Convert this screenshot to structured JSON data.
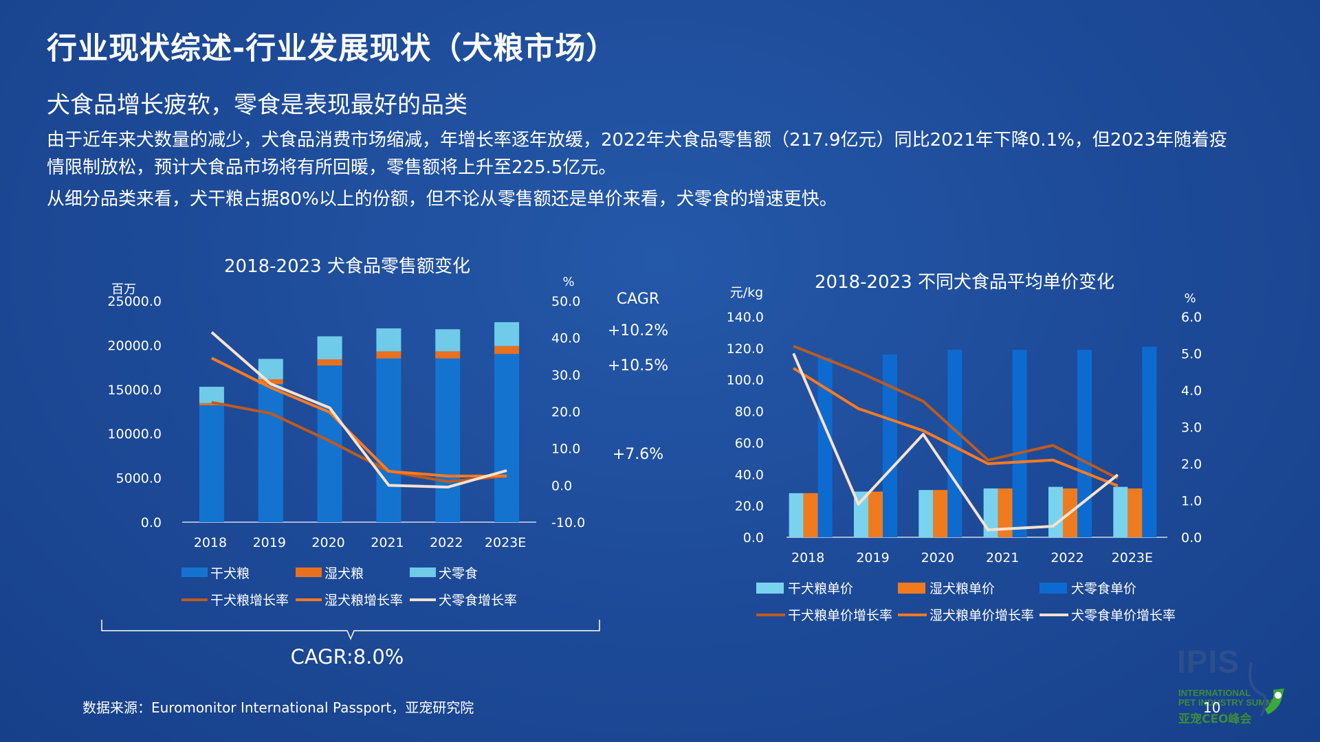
{
  "header": {
    "title": "行业现状综述-行业发展现状（犬粮市场）",
    "subtitle": "犬食品增长疲软，零食是表现最好的品类",
    "paragraph1": "由于近年来犬数量的减少，犬食品消费市场缩减，年增长率逐年放缓，2022年犬食品零售额（217.9亿元）同比2021年下降0.1%，但2023年随着疫情限制放松，预计犬食品市场将有所回暖，零售额将上升至225.5亿元。",
    "paragraph2": "从细分品类来看，犬干粮占据80%以上的份额，但不论从零售额还是单价来看，犬零食的增速更快。"
  },
  "colors": {
    "dry": "#1473cf",
    "wet": "#e8701f",
    "snack": "#6fcbe8",
    "dry_price": "#7ad3ee",
    "wet_price": "#f07b1e",
    "snack_price": "#0d6bd0",
    "dry_rate": "#c05a1c",
    "wet_rate": "#ff7a1e",
    "snack_rate": "#fbe2cf"
  },
  "footer": {
    "source": "数据来源：Euromonitor International Passport，亚宠研究院",
    "page": "10"
  },
  "logo": {
    "text": "IPIS",
    "line1": "INTERNATIONAL",
    "line2": "PET INDUSTRY SUMMIT",
    "line3": "亚宠CEO峰会"
  },
  "chart_data": [
    {
      "type": "bar",
      "stacked": true,
      "title": "2018-2023 犬食品零售额变化",
      "left_unit": "百万",
      "right_unit": "%",
      "categories": [
        "2018",
        "2019",
        "2020",
        "2021",
        "2022",
        "2023E"
      ],
      "ylim": [
        0,
        25000
      ],
      "y_ticks": [
        "25000.0",
        "20000.0",
        "15000.0",
        "10000.0",
        "5000.0",
        "0.0"
      ],
      "y2lim": [
        -10,
        50
      ],
      "y2_ticks": [
        "50.0",
        "40.0",
        "30.0",
        "20.0",
        "10.0",
        "0.0",
        "-10.0"
      ],
      "series": [
        {
          "name": "干犬粮",
          "values": [
            13200,
            15600,
            17700,
            18500,
            18500,
            19000
          ]
        },
        {
          "name": "湿犬粮",
          "values": [
            250,
            550,
            700,
            800,
            800,
            900
          ]
        },
        {
          "name": "犬零食",
          "values": [
            1850,
            2300,
            2600,
            2600,
            2500,
            2700
          ]
        }
      ],
      "line_series": [
        {
          "name": "干犬粮增长率",
          "values": [
            22.5,
            19.5,
            12.0,
            3.8,
            1.0,
            2.5
          ]
        },
        {
          "name": "湿犬粮增长率",
          "values": [
            34.5,
            26.5,
            19.8,
            3.8,
            2.5,
            2.5
          ]
        },
        {
          "name": "犬零食增长率",
          "values": [
            41.5,
            27.5,
            21.0,
            0.0,
            -0.5,
            4.0
          ]
        }
      ],
      "cagr_title": "CAGR",
      "cagr": [
        "+10.2%",
        "+10.5%",
        "+7.6%"
      ],
      "total_cagr": "CAGR:8.0%",
      "legend": "bottom"
    },
    {
      "type": "bar",
      "title": "2018-2023 不同犬食品平均单价变化",
      "left_unit": "元/kg",
      "right_unit": "%",
      "categories": [
        "2018",
        "2019",
        "2020",
        "2021",
        "2022",
        "2023E"
      ],
      "ylim": [
        0,
        140
      ],
      "y_ticks": [
        "140.0",
        "120.0",
        "100.0",
        "80.0",
        "60.0",
        "40.0",
        "20.0",
        "0.0"
      ],
      "y2lim": [
        0,
        6
      ],
      "y2_ticks": [
        "6.0",
        "5.0",
        "4.0",
        "3.0",
        "2.0",
        "1.0",
        "0.0"
      ],
      "series": [
        {
          "name": "干犬粮单价",
          "values": [
            28,
            29,
            30,
            31,
            32,
            32
          ]
        },
        {
          "name": "湿犬粮单价",
          "values": [
            28,
            29,
            30,
            31,
            31,
            31
          ]
        },
        {
          "name": "犬零食单价",
          "values": [
            114,
            116,
            119,
            119,
            119,
            121
          ]
        }
      ],
      "line_series": [
        {
          "name": "干犬粮单价增长率",
          "values": [
            5.2,
            4.5,
            3.7,
            2.1,
            2.5,
            1.6
          ]
        },
        {
          "name": "湿犬粮单价增长率",
          "values": [
            4.6,
            3.5,
            2.9,
            2.0,
            2.1,
            1.4
          ]
        },
        {
          "name": "犬零食单价增长率",
          "values": [
            5.0,
            0.9,
            2.8,
            0.2,
            0.3,
            1.7
          ]
        }
      ],
      "legend": "bottom"
    }
  ]
}
